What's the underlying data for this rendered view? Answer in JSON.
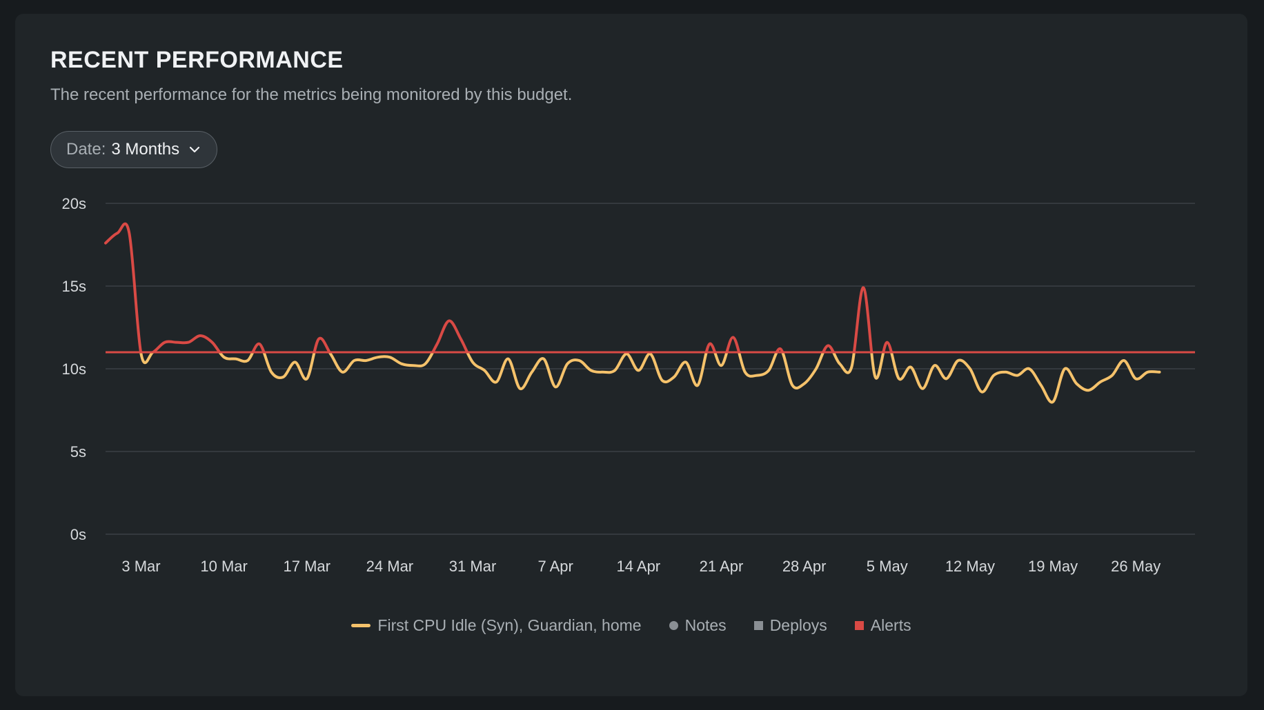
{
  "header": {
    "title": "RECENT PERFORMANCE",
    "subtitle": "The recent performance for the metrics being monitored by this budget."
  },
  "date_filter": {
    "label": "Date:",
    "value": "3 Months",
    "icon": "chevron-down-icon"
  },
  "colors": {
    "series": "#f5c26b",
    "alert": "#d94a45",
    "notes": "#8a8f94",
    "deploys": "#8a8f94",
    "grid": "#3a4045"
  },
  "legend": {
    "series_label": "First CPU Idle (Syn), Guardian, home",
    "notes_label": "Notes",
    "deploys_label": "Deploys",
    "alerts_label": "Alerts"
  },
  "chart_data": {
    "type": "line",
    "y_ticks": [
      "0s",
      "5s",
      "10s",
      "15s",
      "20s"
    ],
    "ylim": [
      0,
      20
    ],
    "x_start": "2019-02-28",
    "x_end": "2019-05-31",
    "x_ticks": [
      {
        "date": "2019-03-03",
        "label": "3 Mar"
      },
      {
        "date": "2019-03-10",
        "label": "10 Mar"
      },
      {
        "date": "2019-03-17",
        "label": "17 Mar"
      },
      {
        "date": "2019-03-24",
        "label": "24 Mar"
      },
      {
        "date": "2019-03-31",
        "label": "31 Mar"
      },
      {
        "date": "2019-04-07",
        "label": "7 Apr"
      },
      {
        "date": "2019-04-14",
        "label": "14 Apr"
      },
      {
        "date": "2019-04-21",
        "label": "21 Apr"
      },
      {
        "date": "2019-04-28",
        "label": "28 Apr"
      },
      {
        "date": "2019-05-05",
        "label": "5 May"
      },
      {
        "date": "2019-05-12",
        "label": "12 May"
      },
      {
        "date": "2019-05-19",
        "label": "19 May"
      },
      {
        "date": "2019-05-26",
        "label": "26 May"
      }
    ],
    "threshold": 11,
    "grid": true,
    "series": [
      {
        "name": "First CPU Idle (Syn), Guardian, home",
        "points": [
          [
            "2019-02-28",
            17.6
          ],
          [
            "2019-03-01",
            18.2
          ],
          [
            "2019-03-02",
            18.2
          ],
          [
            "2019-03-03",
            10.9
          ],
          [
            "2019-03-04",
            11.0
          ],
          [
            "2019-03-05",
            11.6
          ],
          [
            "2019-03-06",
            11.6
          ],
          [
            "2019-03-07",
            11.6
          ],
          [
            "2019-03-08",
            12.0
          ],
          [
            "2019-03-09",
            11.6
          ],
          [
            "2019-03-10",
            10.7
          ],
          [
            "2019-03-11",
            10.6
          ],
          [
            "2019-03-12",
            10.5
          ],
          [
            "2019-03-13",
            11.5
          ],
          [
            "2019-03-14",
            9.8
          ],
          [
            "2019-03-15",
            9.5
          ],
          [
            "2019-03-16",
            10.4
          ],
          [
            "2019-03-17",
            9.4
          ],
          [
            "2019-03-18",
            11.8
          ],
          [
            "2019-03-19",
            10.9
          ],
          [
            "2019-03-20",
            9.8
          ],
          [
            "2019-03-21",
            10.5
          ],
          [
            "2019-03-22",
            10.5
          ],
          [
            "2019-03-23",
            10.7
          ],
          [
            "2019-03-24",
            10.7
          ],
          [
            "2019-03-25",
            10.3
          ],
          [
            "2019-03-26",
            10.2
          ],
          [
            "2019-03-27",
            10.3
          ],
          [
            "2019-03-28",
            11.5
          ],
          [
            "2019-03-29",
            12.9
          ],
          [
            "2019-03-30",
            11.8
          ],
          [
            "2019-03-31",
            10.4
          ],
          [
            "2019-04-01",
            9.9
          ],
          [
            "2019-04-02",
            9.2
          ],
          [
            "2019-04-03",
            10.6
          ],
          [
            "2019-04-04",
            8.8
          ],
          [
            "2019-04-05",
            9.8
          ],
          [
            "2019-04-06",
            10.6
          ],
          [
            "2019-04-07",
            8.9
          ],
          [
            "2019-04-08",
            10.3
          ],
          [
            "2019-04-09",
            10.5
          ],
          [
            "2019-04-10",
            9.9
          ],
          [
            "2019-04-11",
            9.8
          ],
          [
            "2019-04-12",
            9.9
          ],
          [
            "2019-04-13",
            10.9
          ],
          [
            "2019-04-14",
            9.9
          ],
          [
            "2019-04-15",
            10.9
          ],
          [
            "2019-04-16",
            9.3
          ],
          [
            "2019-04-17",
            9.5
          ],
          [
            "2019-04-18",
            10.4
          ],
          [
            "2019-04-19",
            9.0
          ],
          [
            "2019-04-20",
            11.5
          ],
          [
            "2019-04-21",
            10.2
          ],
          [
            "2019-04-22",
            11.9
          ],
          [
            "2019-04-23",
            9.8
          ],
          [
            "2019-04-24",
            9.6
          ],
          [
            "2019-04-25",
            9.9
          ],
          [
            "2019-04-26",
            11.2
          ],
          [
            "2019-04-27",
            9.0
          ],
          [
            "2019-04-28",
            9.1
          ],
          [
            "2019-04-29",
            10.0
          ],
          [
            "2019-04-30",
            11.4
          ],
          [
            "2019-05-01",
            10.3
          ],
          [
            "2019-05-02",
            10.1
          ],
          [
            "2019-05-03",
            14.9
          ],
          [
            "2019-05-04",
            9.5
          ],
          [
            "2019-05-05",
            11.6
          ],
          [
            "2019-05-06",
            9.4
          ],
          [
            "2019-05-07",
            10.1
          ],
          [
            "2019-05-08",
            8.8
          ],
          [
            "2019-05-09",
            10.2
          ],
          [
            "2019-05-10",
            9.4
          ],
          [
            "2019-05-11",
            10.5
          ],
          [
            "2019-05-12",
            10.0
          ],
          [
            "2019-05-13",
            8.6
          ],
          [
            "2019-05-14",
            9.6
          ],
          [
            "2019-05-15",
            9.8
          ],
          [
            "2019-05-16",
            9.6
          ],
          [
            "2019-05-17",
            10.0
          ],
          [
            "2019-05-18",
            9.0
          ],
          [
            "2019-05-19",
            8.0
          ],
          [
            "2019-05-20",
            10.0
          ],
          [
            "2019-05-21",
            9.1
          ],
          [
            "2019-05-22",
            8.7
          ],
          [
            "2019-05-23",
            9.2
          ],
          [
            "2019-05-24",
            9.6
          ],
          [
            "2019-05-25",
            10.5
          ],
          [
            "2019-05-26",
            9.4
          ],
          [
            "2019-05-27",
            9.8
          ],
          [
            "2019-05-28",
            9.8
          ]
        ]
      }
    ]
  }
}
